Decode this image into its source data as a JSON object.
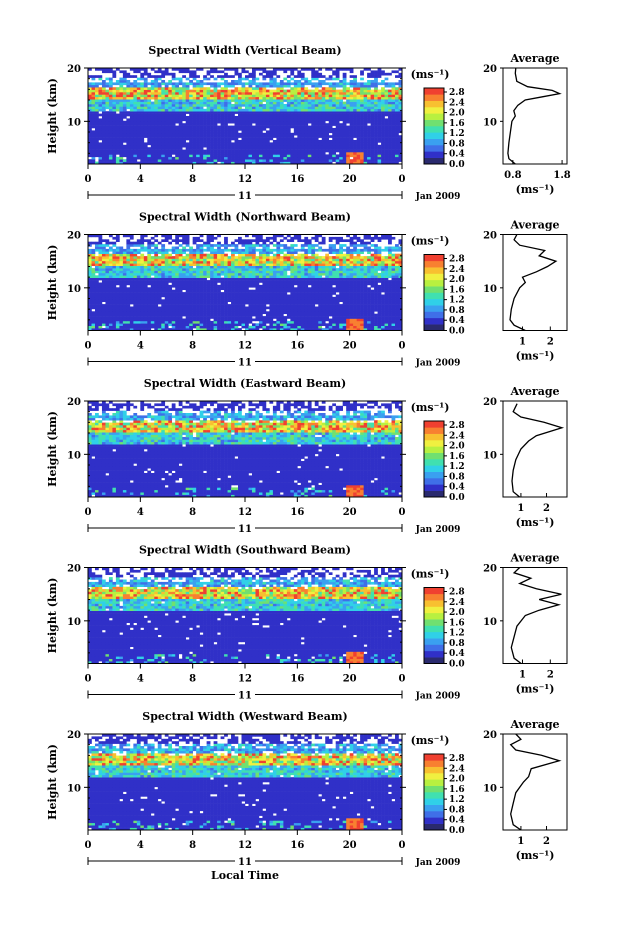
{
  "figure": {
    "xlabel": "Local Time"
  },
  "colorbar": {
    "unit_label": "(ms⁻¹)",
    "ticks": [
      "2.8",
      "2.4",
      "2.0",
      "1.6",
      "1.2",
      "0.8",
      "0.4",
      "0.0"
    ],
    "colors": [
      "#2a2a6e",
      "#3030c8",
      "#3f6fe8",
      "#3aa0f0",
      "#30d0e8",
      "#40e0b0",
      "#70e070",
      "#b8f040",
      "#f0f040",
      "#f8c030",
      "#f88030",
      "#f04030"
    ]
  },
  "chart_data": [
    {
      "type": "heatmap",
      "title": "Spectral Width (Vertical Beam)",
      "ylabel": "Height (km)",
      "ylim": [
        2,
        20
      ],
      "yticks": [
        10,
        20
      ],
      "xlim": [
        0,
        24
      ],
      "xticks": [
        "0",
        "4",
        "8",
        "12",
        "16",
        "20",
        "0"
      ],
      "date_marker": "11",
      "date_label": "Jan 2009",
      "average": {
        "title": "Average",
        "xlabel": "(ms⁻¹)",
        "xticks": [
          "0.8",
          "1.8"
        ],
        "xlim": [
          0.6,
          1.9
        ],
        "profile": [
          [
            0.85,
            2
          ],
          [
            0.72,
            3
          ],
          [
            0.7,
            4
          ],
          [
            0.72,
            6
          ],
          [
            0.75,
            8
          ],
          [
            0.78,
            10
          ],
          [
            0.85,
            11
          ],
          [
            0.82,
            12
          ],
          [
            0.9,
            13
          ],
          [
            1.05,
            14
          ],
          [
            1.4,
            14.6
          ],
          [
            1.75,
            15.2
          ],
          [
            1.6,
            15.8
          ],
          [
            1.1,
            16.5
          ],
          [
            0.88,
            17.5
          ],
          [
            0.85,
            19
          ],
          [
            0.86,
            20
          ]
        ]
      }
    },
    {
      "type": "heatmap",
      "title": "Spectral Width (Northward Beam)",
      "ylabel": "Height (km)",
      "ylim": [
        2,
        20
      ],
      "yticks": [
        10,
        20
      ],
      "xlim": [
        0,
        24
      ],
      "xticks": [
        "0",
        "4",
        "8",
        "12",
        "16",
        "20",
        "0"
      ],
      "date_marker": "11",
      "date_label": "Jan 2009",
      "average": {
        "title": "Average",
        "xlabel": "(ms⁻¹)",
        "xticks": [
          "1",
          "2"
        ],
        "xlim": [
          0.3,
          2.6
        ],
        "profile": [
          [
            1.1,
            2
          ],
          [
            0.7,
            3
          ],
          [
            0.55,
            4
          ],
          [
            0.6,
            6
          ],
          [
            0.7,
            8
          ],
          [
            0.9,
            10
          ],
          [
            1.1,
            11
          ],
          [
            1.0,
            12
          ],
          [
            1.5,
            13
          ],
          [
            1.9,
            14
          ],
          [
            2.2,
            15
          ],
          [
            1.6,
            16
          ],
          [
            1.8,
            17
          ],
          [
            0.9,
            18
          ],
          [
            0.7,
            19
          ],
          [
            0.8,
            20
          ]
        ]
      }
    },
    {
      "type": "heatmap",
      "title": "Spectral Width (Eastward Beam)",
      "ylabel": "Height (km)",
      "ylim": [
        2,
        20
      ],
      "yticks": [
        10,
        20
      ],
      "xlim": [
        0,
        24
      ],
      "xticks": [
        "0",
        "4",
        "8",
        "12",
        "16",
        "20",
        "0"
      ],
      "date_marker": "11",
      "date_label": "Jan 2009",
      "average": {
        "title": "Average",
        "xlabel": "(ms⁻¹)",
        "xticks": [
          "1",
          "2"
        ],
        "xlim": [
          0.3,
          2.8
        ],
        "profile": [
          [
            0.95,
            2
          ],
          [
            0.7,
            3
          ],
          [
            0.65,
            5
          ],
          [
            0.7,
            7
          ],
          [
            0.8,
            9
          ],
          [
            1.0,
            11
          ],
          [
            1.3,
            12.5
          ],
          [
            1.6,
            13.5
          ],
          [
            2.6,
            15
          ],
          [
            1.9,
            16
          ],
          [
            1.0,
            17
          ],
          [
            0.7,
            18
          ],
          [
            0.85,
            19.5
          ]
        ]
      }
    },
    {
      "type": "heatmap",
      "title": "Spectral Width (Southward Beam)",
      "ylabel": "Height (km)",
      "ylim": [
        2,
        20
      ],
      "yticks": [
        10,
        20
      ],
      "xlim": [
        0,
        24
      ],
      "xticks": [
        "0",
        "4",
        "8",
        "12",
        "16",
        "20",
        "0"
      ],
      "date_marker": "11",
      "date_label": "Jan 2009",
      "average": {
        "title": "Average",
        "xlabel": "(ms⁻¹)",
        "xticks": [
          "1",
          "2"
        ],
        "xlim": [
          0.3,
          2.6
        ],
        "profile": [
          [
            0.95,
            2
          ],
          [
            0.7,
            3
          ],
          [
            0.6,
            5
          ],
          [
            0.7,
            7
          ],
          [
            0.8,
            9
          ],
          [
            1.1,
            11
          ],
          [
            1.6,
            12
          ],
          [
            2.3,
            13
          ],
          [
            1.6,
            14
          ],
          [
            2.4,
            15
          ],
          [
            1.5,
            16
          ],
          [
            0.9,
            17
          ],
          [
            1.3,
            18
          ],
          [
            0.7,
            19
          ],
          [
            0.9,
            20
          ]
        ]
      }
    },
    {
      "type": "heatmap",
      "title": "Spectral Width (Westward Beam)",
      "ylabel": "Height (km)",
      "ylim": [
        2,
        20
      ],
      "yticks": [
        10,
        20
      ],
      "xlim": [
        0,
        24
      ],
      "xticks": [
        "0",
        "4",
        "8",
        "12",
        "16",
        "20",
        "0"
      ],
      "date_marker": "11",
      "date_label": "Jan 2009",
      "average": {
        "title": "Average",
        "xlabel": "(ms⁻¹)",
        "xticks": [
          "1",
          "2"
        ],
        "xlim": [
          0.3,
          2.8
        ],
        "profile": [
          [
            1.0,
            2
          ],
          [
            0.7,
            3
          ],
          [
            0.6,
            5
          ],
          [
            0.7,
            7
          ],
          [
            0.8,
            9
          ],
          [
            1.1,
            11
          ],
          [
            1.3,
            12
          ],
          [
            1.4,
            13.5
          ],
          [
            2.5,
            15
          ],
          [
            1.8,
            16
          ],
          [
            0.8,
            17
          ],
          [
            0.6,
            18
          ],
          [
            1.0,
            19
          ],
          [
            0.8,
            20
          ]
        ]
      }
    }
  ]
}
